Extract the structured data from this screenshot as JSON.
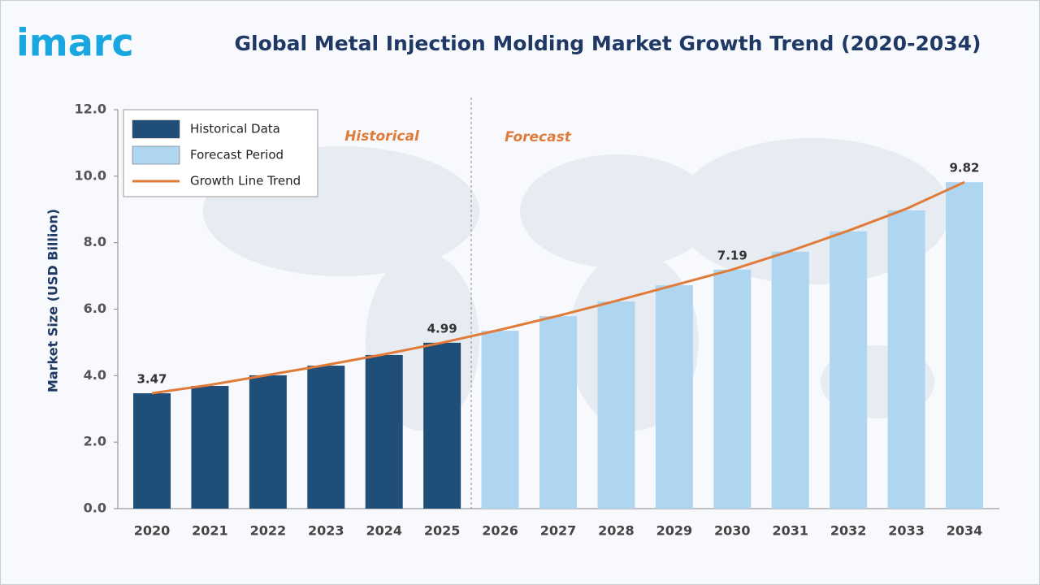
{
  "logo": "imarc",
  "chart_data": {
    "type": "bar-line",
    "title": "Global Metal Injection Molding Market Growth Trend (2020-2034)",
    "y_label": "Market Size (USD Billion)",
    "categories": [
      "2020",
      "2021",
      "2022",
      "2023",
      "2024",
      "2025",
      "2026",
      "2027",
      "2028",
      "2029",
      "2030",
      "2031",
      "2032",
      "2033",
      "2034"
    ],
    "series": [
      {
        "name": "Historical Data",
        "kind": "bar",
        "color": "#1f4e79",
        "values": [
          3.47,
          3.69,
          4.01,
          4.3,
          4.62,
          4.99,
          null,
          null,
          null,
          null,
          null,
          null,
          null,
          null,
          null
        ],
        "value_labels": [
          "3.47",
          null,
          null,
          null,
          null,
          "4.99",
          null,
          null,
          null,
          null,
          null,
          null,
          null,
          null,
          null
        ]
      },
      {
        "name": "Forecast Period",
        "kind": "bar",
        "color": "#aed6f1",
        "values": [
          null,
          null,
          null,
          null,
          null,
          null,
          5.35,
          5.79,
          6.23,
          6.72,
          7.19,
          7.73,
          8.34,
          8.97,
          9.82
        ],
        "value_labels": [
          null,
          null,
          null,
          null,
          null,
          null,
          null,
          null,
          null,
          null,
          "7.19",
          null,
          null,
          null,
          "9.82"
        ]
      },
      {
        "name": "Growth Line Trend",
        "kind": "line",
        "color": "#e07b39",
        "values": [
          3.47,
          3.72,
          4.02,
          4.32,
          4.64,
          4.99,
          5.38,
          5.8,
          6.25,
          6.72,
          7.19,
          7.75,
          8.36,
          9.02,
          9.82
        ]
      }
    ],
    "annotations": [
      "Historical",
      "Forecast"
    ],
    "ylim": [
      0,
      12
    ],
    "yticks": [
      {
        "value": 0,
        "label": "0.0"
      },
      {
        "value": 2,
        "label": "2.0"
      },
      {
        "value": 4,
        "label": "4.0"
      },
      {
        "value": 6,
        "label": "6.0"
      },
      {
        "value": 8,
        "label": "8.0"
      },
      {
        "value": 10,
        "label": "10.0"
      },
      {
        "value": 12,
        "label": "12.0"
      }
    ]
  }
}
